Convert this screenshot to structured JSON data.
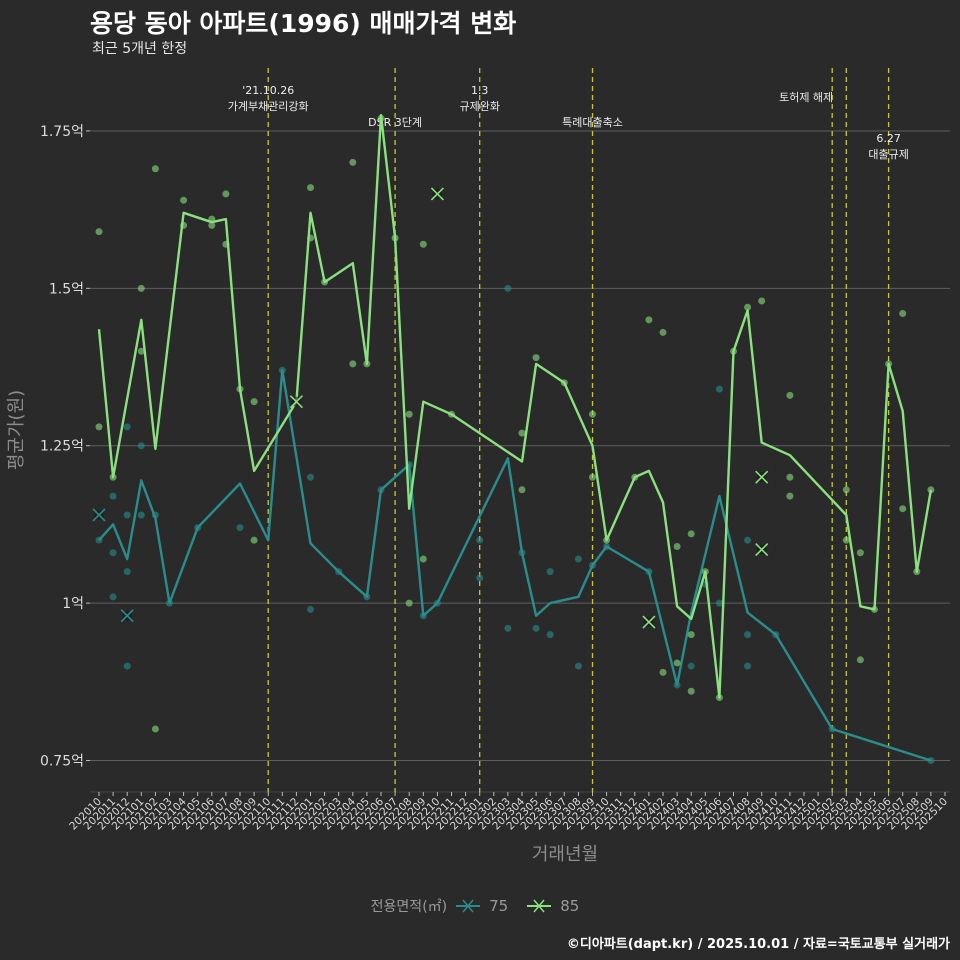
{
  "title": "용당 동아 아파트(1996) 매매가격 변화",
  "subtitle": "최근 5개년 한정",
  "caption": "©디아파트(dapt.kr) / 2025.10.01 / 자료=국토교통부 실거래가",
  "chart_data": {
    "type": "line",
    "xlabel": "거래년월",
    "ylabel": "평균가(원)",
    "ylim": [
      0.7,
      1.85
    ],
    "yticks": [
      {
        "value": 0.75,
        "label": "0.75억"
      },
      {
        "value": 1.0,
        "label": "1억"
      },
      {
        "value": 1.25,
        "label": "1.25억"
      },
      {
        "value": 1.5,
        "label": "1.5억"
      },
      {
        "value": 1.75,
        "label": "1.75억"
      }
    ],
    "x_start": "2020-10",
    "x_end": "2025-10",
    "xtick_labels": [
      "202010",
      "202011",
      "202012",
      "202101",
      "202102",
      "202103",
      "202104",
      "202105",
      "202106",
      "202107",
      "202108",
      "202109",
      "202110",
      "202111",
      "202112",
      "202201",
      "202202",
      "202203",
      "202204",
      "202205",
      "202206",
      "202207",
      "202208",
      "202209",
      "202210",
      "202211",
      "202212",
      "202301",
      "202302",
      "202303",
      "202304",
      "202305",
      "202306",
      "202307",
      "202308",
      "202309",
      "202310",
      "202311",
      "202312",
      "202401",
      "202402",
      "202403",
      "202404",
      "202405",
      "202406",
      "202407",
      "202408",
      "202409",
      "202410",
      "202411",
      "202412",
      "202501",
      "202502",
      "202503",
      "202504",
      "202505",
      "202506",
      "202507",
      "202508",
      "202509",
      "202510"
    ],
    "legend_title": "전용면적(㎡)",
    "series": [
      {
        "name": "75",
        "color": "#2a8d8d",
        "line": [
          [
            0,
            1.1
          ],
          [
            1,
            1.125
          ],
          [
            2,
            1.07
          ],
          [
            3,
            1.195
          ],
          [
            4,
            1.135
          ],
          [
            5,
            1.0
          ],
          [
            7,
            1.12
          ],
          [
            10,
            1.19
          ],
          [
            12,
            1.1
          ],
          [
            13,
            1.37
          ],
          [
            15,
            1.095
          ],
          [
            17,
            1.05
          ],
          [
            19,
            1.01
          ],
          [
            20,
            1.18
          ],
          [
            21,
            1.2
          ],
          [
            22,
            1.22
          ],
          [
            23,
            0.98
          ],
          [
            24,
            1.0
          ],
          [
            29,
            1.23
          ],
          [
            30,
            1.08
          ],
          [
            31,
            0.98
          ],
          [
            32,
            1.0
          ],
          [
            34,
            1.01
          ],
          [
            35,
            1.06
          ],
          [
            36,
            1.09
          ],
          [
            39,
            1.05
          ],
          [
            41,
            0.87
          ],
          [
            42,
            0.985
          ],
          [
            44,
            1.17
          ],
          [
            46,
            0.985
          ],
          [
            48,
            0.95
          ],
          [
            52,
            0.8
          ],
          [
            59,
            0.75
          ]
        ],
        "points": [
          [
            0,
            1.1
          ],
          [
            1,
            1.17
          ],
          [
            1,
            1.08
          ],
          [
            1,
            1.01
          ],
          [
            2,
            1.28
          ],
          [
            2,
            1.14
          ],
          [
            2,
            1.05
          ],
          [
            2,
            0.9
          ],
          [
            3,
            1.25
          ],
          [
            3,
            1.14
          ],
          [
            4,
            1.14
          ],
          [
            5,
            1.0
          ],
          [
            7,
            1.12
          ],
          [
            10,
            1.12
          ],
          [
            13,
            1.37
          ],
          [
            15,
            1.2
          ],
          [
            15,
            0.99
          ],
          [
            17,
            1.05
          ],
          [
            19,
            1.01
          ],
          [
            20,
            1.18
          ],
          [
            22,
            1.22
          ],
          [
            23,
            0.98
          ],
          [
            24,
            1.0
          ],
          [
            27,
            1.1
          ],
          [
            27,
            1.04
          ],
          [
            29,
            1.5
          ],
          [
            29,
            0.96
          ],
          [
            30,
            1.08
          ],
          [
            31,
            0.96
          ],
          [
            32,
            1.05
          ],
          [
            32,
            0.95
          ],
          [
            34,
            1.07
          ],
          [
            34,
            0.9
          ],
          [
            35,
            1.06
          ],
          [
            36,
            1.09
          ],
          [
            39,
            1.05
          ],
          [
            41,
            0.87
          ],
          [
            42,
            0.9
          ],
          [
            43,
            1.03
          ],
          [
            44,
            1.34
          ],
          [
            44,
            1.0
          ],
          [
            46,
            1.1
          ],
          [
            46,
            0.95
          ],
          [
            46,
            0.9
          ],
          [
            48,
            0.95
          ],
          [
            52,
            0.8
          ],
          [
            59,
            0.75
          ]
        ],
        "crosses": [
          [
            0,
            1.14
          ],
          [
            2,
            0.98
          ]
        ]
      },
      {
        "name": "85",
        "color": "#8be07f",
        "line": [
          [
            0,
            1.435
          ],
          [
            1,
            1.2
          ],
          [
            3,
            1.45
          ],
          [
            4,
            1.245
          ],
          [
            6,
            1.62
          ],
          [
            8,
            1.605
          ],
          [
            9,
            1.61
          ],
          [
            10,
            1.34
          ],
          [
            11,
            1.21
          ],
          [
            14,
            1.32
          ],
          [
            15,
            1.62
          ],
          [
            16,
            1.51
          ],
          [
            18,
            1.54
          ],
          [
            19,
            1.38
          ],
          [
            20,
            1.775
          ],
          [
            21,
            1.58
          ],
          [
            22,
            1.15
          ],
          [
            23,
            1.32
          ],
          [
            25,
            1.3
          ],
          [
            30,
            1.225
          ],
          [
            31,
            1.38
          ],
          [
            33,
            1.35
          ],
          [
            35,
            1.25
          ],
          [
            36,
            1.1
          ],
          [
            38,
            1.2
          ],
          [
            39,
            1.21
          ],
          [
            40,
            1.16
          ],
          [
            41,
            0.995
          ],
          [
            42,
            0.975
          ],
          [
            43,
            1.05
          ],
          [
            44,
            0.85
          ],
          [
            45,
            1.4
          ],
          [
            46,
            1.465
          ],
          [
            47,
            1.255
          ],
          [
            49,
            1.235
          ],
          [
            53,
            1.14
          ],
          [
            54,
            0.995
          ],
          [
            55,
            0.99
          ],
          [
            56,
            1.38
          ],
          [
            57,
            1.305
          ],
          [
            58,
            1.05
          ],
          [
            59,
            1.18
          ]
        ],
        "points": [
          [
            0,
            1.59
          ],
          [
            0,
            1.28
          ],
          [
            1,
            1.2
          ],
          [
            3,
            1.5
          ],
          [
            3,
            1.4
          ],
          [
            4,
            1.69
          ],
          [
            4,
            0.8
          ],
          [
            6,
            1.64
          ],
          [
            6,
            1.6
          ],
          [
            8,
            1.61
          ],
          [
            8,
            1.6
          ],
          [
            9,
            1.65
          ],
          [
            9,
            1.57
          ],
          [
            10,
            1.34
          ],
          [
            11,
            1.32
          ],
          [
            11,
            1.1
          ],
          [
            15,
            1.66
          ],
          [
            15,
            1.58
          ],
          [
            16,
            1.51
          ],
          [
            18,
            1.7
          ],
          [
            18,
            1.38
          ],
          [
            19,
            1.38
          ],
          [
            20,
            1.77
          ],
          [
            21,
            1.58
          ],
          [
            22,
            1.3
          ],
          [
            22,
            1.0
          ],
          [
            23,
            1.57
          ],
          [
            23,
            1.07
          ],
          [
            25,
            1.3
          ],
          [
            30,
            1.27
          ],
          [
            30,
            1.18
          ],
          [
            31,
            1.39
          ],
          [
            33,
            1.35
          ],
          [
            35,
            1.3
          ],
          [
            35,
            1.2
          ],
          [
            36,
            1.1
          ],
          [
            38,
            1.2
          ],
          [
            39,
            1.45
          ],
          [
            40,
            1.43
          ],
          [
            40,
            0.89
          ],
          [
            41,
            1.09
          ],
          [
            41,
            0.905
          ],
          [
            42,
            1.11
          ],
          [
            42,
            0.95
          ],
          [
            42,
            0.86
          ],
          [
            43,
            1.05
          ],
          [
            44,
            0.85
          ],
          [
            45,
            1.4
          ],
          [
            46,
            1.47
          ],
          [
            47,
            1.48
          ],
          [
            49,
            1.33
          ],
          [
            49,
            1.2
          ],
          [
            49,
            1.17
          ],
          [
            53,
            1.18
          ],
          [
            53,
            1.1
          ],
          [
            54,
            1.08
          ],
          [
            54,
            0.91
          ],
          [
            55,
            0.99
          ],
          [
            56,
            1.38
          ],
          [
            57,
            1.46
          ],
          [
            57,
            1.15
          ],
          [
            58,
            1.05
          ],
          [
            59,
            1.18
          ]
        ],
        "crosses": [
          [
            14,
            1.32
          ],
          [
            24,
            1.65
          ],
          [
            39,
            0.97
          ],
          [
            47,
            1.2
          ],
          [
            47,
            1.085
          ]
        ]
      }
    ],
    "events": [
      {
        "x": 12,
        "lines": [
          "'21.10.26",
          "가계부채관리강화"
        ],
        "level": 0
      },
      {
        "x": 21,
        "lines": [
          "DSR 3단계"
        ],
        "level": 2
      },
      {
        "x": 27,
        "lines": [
          "1.3",
          "규제완화"
        ],
        "level": 0
      },
      {
        "x": 35,
        "lines": [
          "특례대출축소"
        ],
        "level": 2
      },
      {
        "x": 52,
        "lines": [
          "토허제 해제"
        ],
        "level": 1,
        "anchor": "end"
      },
      {
        "x": 53,
        "lines": [],
        "level": 0
      },
      {
        "x": 56,
        "lines": [
          "6.27",
          "대출규제"
        ],
        "level": 3
      }
    ]
  }
}
